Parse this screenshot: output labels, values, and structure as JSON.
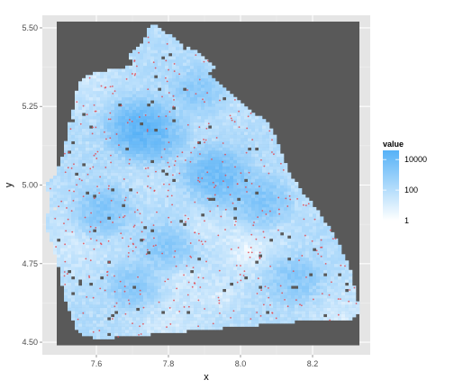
{
  "chart_data": {
    "type": "heatmap",
    "title": "",
    "xlabel": "x",
    "ylabel": "y",
    "xlim": [
      7.45,
      8.36
    ],
    "ylim": [
      4.46,
      5.54
    ],
    "x_ticks": [
      7.6,
      7.8,
      8.0,
      8.2
    ],
    "x_tick_labels": [
      "7.6",
      "7.8",
      "8.0",
      "8.2"
    ],
    "y_ticks": [
      4.5,
      4.75,
      5.0,
      5.25,
      5.5
    ],
    "y_tick_labels": [
      "4.50",
      "4.75",
      "5.00",
      "5.25",
      "5.50"
    ],
    "grid": true,
    "panel_fill_for_missing": "#595959",
    "legend": {
      "title": "value",
      "position": "right",
      "scale": "log10",
      "breaks": [
        1,
        100,
        10000
      ],
      "break_labels": [
        "1",
        "100",
        "10000"
      ],
      "range": [
        1,
        40000
      ],
      "colors": {
        "low": "#ffffff",
        "high": "#56b1f7"
      }
    },
    "region_outline": [
      [
        7.76,
        5.51
      ],
      [
        7.8,
        5.48
      ],
      [
        7.85,
        5.44
      ],
      [
        7.9,
        5.41
      ],
      [
        7.93,
        5.37
      ],
      [
        7.91,
        5.35
      ],
      [
        7.96,
        5.3
      ],
      [
        7.99,
        5.27
      ],
      [
        8.05,
        5.22
      ],
      [
        8.08,
        5.19
      ],
      [
        8.1,
        5.15
      ],
      [
        8.11,
        5.11
      ],
      [
        8.14,
        5.03
      ],
      [
        8.17,
        4.98
      ],
      [
        8.22,
        4.91
      ],
      [
        8.26,
        4.84
      ],
      [
        8.29,
        4.77
      ],
      [
        8.31,
        4.71
      ],
      [
        8.32,
        4.65
      ],
      [
        8.33,
        4.6
      ],
      [
        8.3,
        4.57
      ],
      [
        8.2,
        4.57
      ],
      [
        8.1,
        4.56
      ],
      [
        8.0,
        4.55
      ],
      [
        7.9,
        4.54
      ],
      [
        7.8,
        4.53
      ],
      [
        7.7,
        4.52
      ],
      [
        7.6,
        4.51
      ],
      [
        7.55,
        4.53
      ],
      [
        7.53,
        4.58
      ],
      [
        7.51,
        4.64
      ],
      [
        7.5,
        4.72
      ],
      [
        7.48,
        4.8
      ],
      [
        7.46,
        4.87
      ],
      [
        7.47,
        4.95
      ],
      [
        7.46,
        5.0
      ],
      [
        7.49,
        5.04
      ],
      [
        7.51,
        5.1
      ],
      [
        7.52,
        5.18
      ],
      [
        7.54,
        5.26
      ],
      [
        7.55,
        5.33
      ],
      [
        7.6,
        5.36
      ],
      [
        7.66,
        5.37
      ],
      [
        7.7,
        5.38
      ],
      [
        7.69,
        5.41
      ],
      [
        7.73,
        5.45
      ],
      [
        7.74,
        5.49
      ]
    ],
    "hotspots": [
      {
        "x": 7.72,
        "y": 5.18,
        "value": 20000
      },
      {
        "x": 7.76,
        "y": 5.16,
        "value": 8000
      },
      {
        "x": 7.92,
        "y": 5.04,
        "value": 6000
      },
      {
        "x": 7.95,
        "y": 5.02,
        "value": 5000
      },
      {
        "x": 7.62,
        "y": 4.92,
        "value": 3000
      },
      {
        "x": 8.06,
        "y": 4.95,
        "value": 3000
      },
      {
        "x": 7.8,
        "y": 4.8,
        "value": 2500
      },
      {
        "x": 8.15,
        "y": 4.7,
        "value": 2000
      },
      {
        "x": 7.7,
        "y": 4.68,
        "value": 1500
      },
      {
        "x": 7.88,
        "y": 5.3,
        "value": 1500
      }
    ],
    "lightband": [
      {
        "x": 7.84,
        "y": 4.72,
        "value": 2
      },
      {
        "x": 7.88,
        "y": 4.86,
        "value": 3
      },
      {
        "x": 7.95,
        "y": 4.64,
        "value": 2
      },
      {
        "x": 8.02,
        "y": 4.78,
        "value": 3
      }
    ],
    "points_series": {
      "color": "#e8474e",
      "approx_count": 450
    }
  }
}
